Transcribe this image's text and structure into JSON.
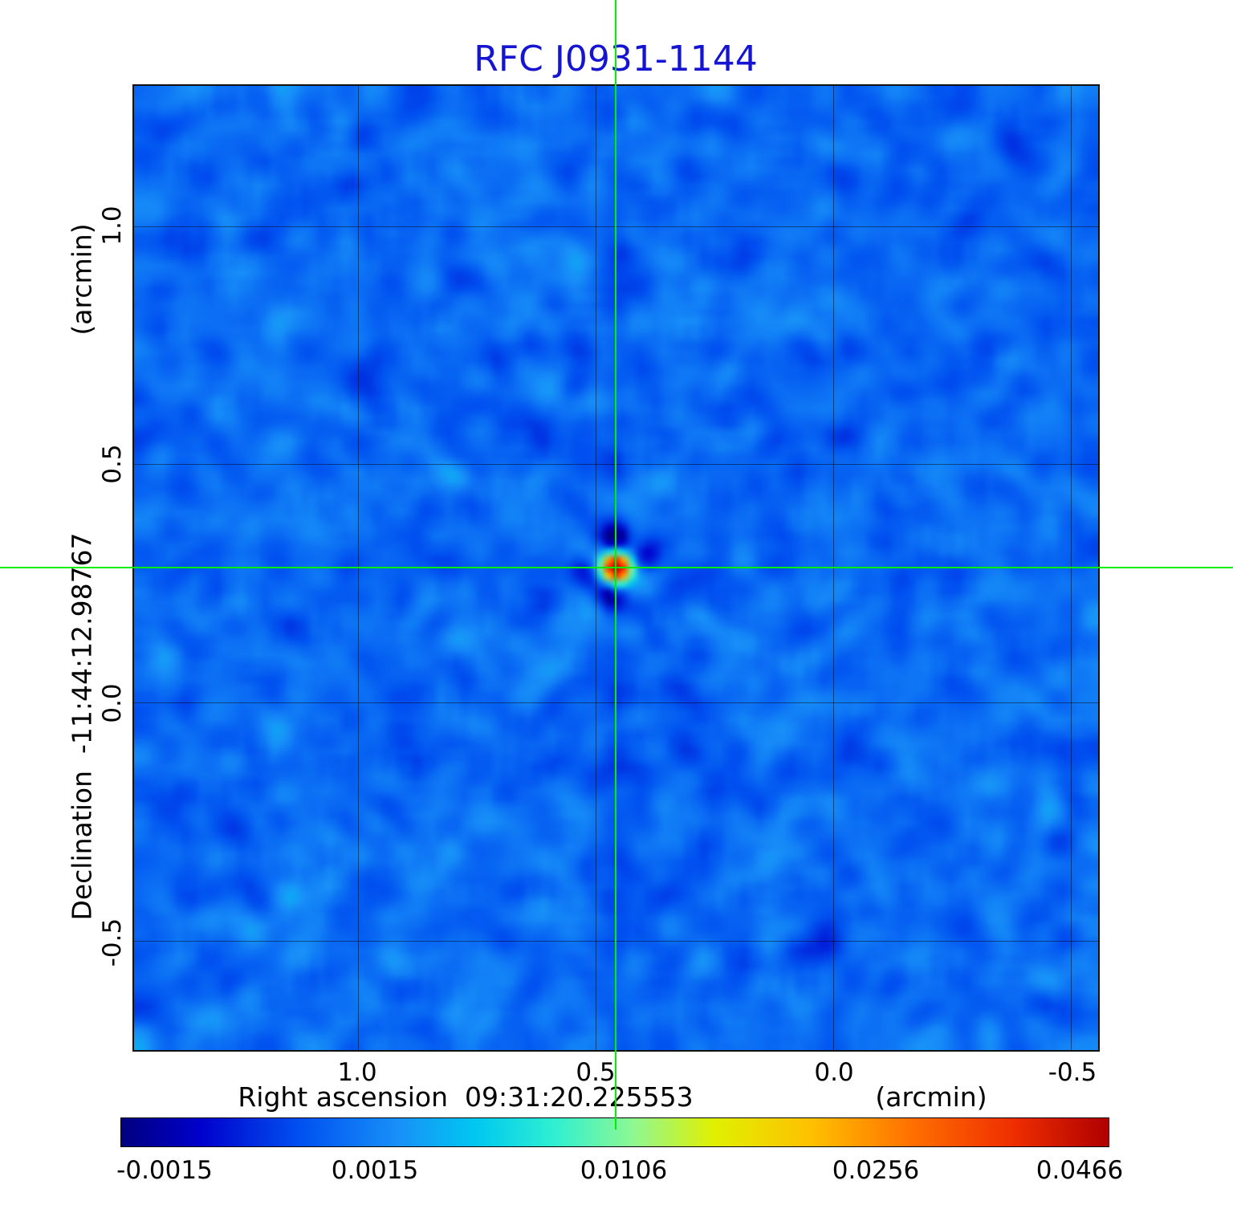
{
  "title": "RFC J0931-1144",
  "title_color": "#1414d2",
  "crosshair_color": "#00ee00",
  "axes": {
    "x": {
      "label": "Right ascension  09:31:20.225553",
      "unit": "(arcmin)",
      "ticks": [
        "1.0",
        "0.5",
        "0.0",
        "-0.5"
      ]
    },
    "y": {
      "label": "Declination  -11:44:12.98767",
      "unit": "(arcmin)",
      "ticks": [
        "1.0",
        "0.5",
        "0.0",
        "-0.5"
      ]
    }
  },
  "colorbar": {
    "labels": [
      "-0.0015",
      "0.0015",
      "0.0106",
      "0.0256",
      "0.0466"
    ]
  },
  "chart_data": {
    "type": "heatmap",
    "title": "RFC J0931-1144",
    "xlabel": "Right ascension 09:31:20.225553 (arcmin)",
    "ylabel": "Declination -11:44:12.98767 (arcmin)",
    "x_range_arcmin": [
      1.47,
      -0.56
    ],
    "y_range_arcmin": [
      -0.73,
      1.29
    ],
    "x_ticks": [
      1.0,
      0.5,
      0.0,
      -0.5
    ],
    "y_ticks": [
      1.0,
      0.5,
      0.0,
      -0.5
    ],
    "colorbar_ticks": [
      -0.0015,
      0.0015,
      0.0106,
      0.0256,
      0.0466
    ],
    "value_range_jy_per_beam": [
      -0.0015,
      0.0466
    ],
    "grid": true,
    "legend_position": "colorbar bottom",
    "source": {
      "x_arcmin": 0.455,
      "y_arcmin": 0.28,
      "peak_value": 0.0466,
      "description": "single compact bright source at map center, marked by green crosshair"
    },
    "background": {
      "mean_level": 0.0005,
      "description": "blue noise background with faint radial dirty-beam sidelobe streaks and small negative (dark navy) sidelobes adjacent to the source"
    },
    "colormap_stops": [
      {
        "t": 0.0,
        "c": "#000080"
      },
      {
        "t": 0.08,
        "c": "#0000cc"
      },
      {
        "t": 0.18,
        "c": "#0050f0"
      },
      {
        "t": 0.28,
        "c": "#1890f8"
      },
      {
        "t": 0.36,
        "c": "#00c8f0"
      },
      {
        "t": 0.44,
        "c": "#30f0d0"
      },
      {
        "t": 0.52,
        "c": "#90f890"
      },
      {
        "t": 0.6,
        "c": "#e0f000"
      },
      {
        "t": 0.7,
        "c": "#ffc000"
      },
      {
        "t": 0.8,
        "c": "#ff7000"
      },
      {
        "t": 0.9,
        "c": "#f03000"
      },
      {
        "t": 1.0,
        "c": "#b00000"
      }
    ]
  }
}
